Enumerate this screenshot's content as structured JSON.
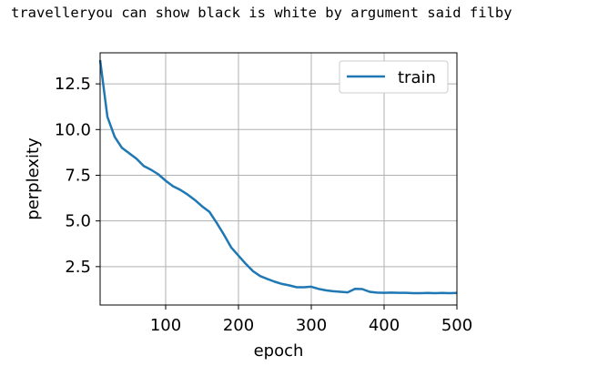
{
  "output_text": "travelleryou can show black is white by argument said filby",
  "chart_data": {
    "type": "line",
    "title": "",
    "xlabel": "epoch",
    "ylabel": "perplexity",
    "xlim": [
      10,
      500
    ],
    "ylim": [
      0.4,
      14.2
    ],
    "xticks": [
      100,
      200,
      300,
      400,
      500
    ],
    "yticks": [
      2.5,
      5.0,
      7.5,
      10.0,
      12.5
    ],
    "xtick_labels": [
      "100",
      "200",
      "300",
      "400",
      "500"
    ],
    "ytick_labels": [
      "2.5",
      "5.0",
      "7.5",
      "10.0",
      "12.5"
    ],
    "grid": true,
    "legend_position": "top-right",
    "series": [
      {
        "name": "train",
        "color": "#1f77b4",
        "x": [
          10,
          20,
          30,
          40,
          50,
          60,
          70,
          80,
          90,
          100,
          110,
          120,
          130,
          140,
          150,
          160,
          170,
          180,
          190,
          200,
          210,
          220,
          230,
          240,
          250,
          260,
          270,
          280,
          290,
          300,
          310,
          320,
          330,
          340,
          350,
          360,
          370,
          380,
          390,
          400,
          410,
          420,
          430,
          440,
          450,
          460,
          470,
          480,
          490,
          500
        ],
        "y": [
          13.8,
          10.7,
          9.6,
          9.0,
          8.7,
          8.4,
          8.0,
          7.8,
          7.55,
          7.2,
          6.9,
          6.7,
          6.45,
          6.15,
          5.8,
          5.5,
          4.9,
          4.25,
          3.55,
          3.1,
          2.65,
          2.25,
          1.98,
          1.82,
          1.67,
          1.55,
          1.47,
          1.37,
          1.37,
          1.4,
          1.28,
          1.2,
          1.15,
          1.12,
          1.09,
          1.28,
          1.27,
          1.12,
          1.08,
          1.07,
          1.08,
          1.07,
          1.07,
          1.05,
          1.05,
          1.06,
          1.05,
          1.06,
          1.05,
          1.06
        ]
      }
    ]
  }
}
